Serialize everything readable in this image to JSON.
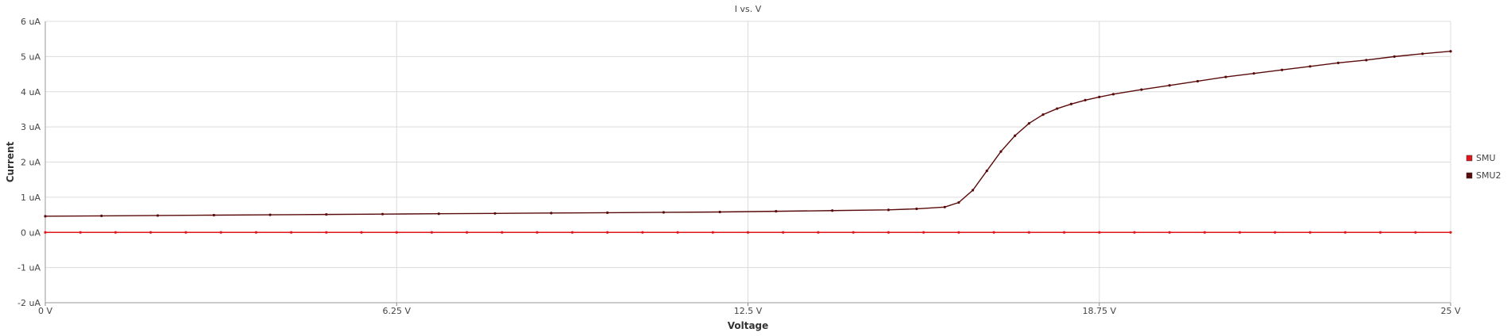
{
  "chart_data": {
    "type": "line",
    "title": "I vs. V",
    "xlabel": "Voltage",
    "ylabel": "Current",
    "xlim": [
      0,
      25
    ],
    "ylim": [
      -2,
      6
    ],
    "x_ticks": [
      0,
      6.25,
      12.5,
      18.75,
      25
    ],
    "x_tick_labels": [
      "0 V",
      "6.25 V",
      "12.5 V",
      "18.75 V",
      "25 V"
    ],
    "y_ticks": [
      -2,
      -1,
      0,
      1,
      2,
      3,
      4,
      5,
      6
    ],
    "y_tick_labels": [
      "-2 uA",
      "-1 uA",
      "0 uA",
      "1 uA",
      "2 uA",
      "3 uA",
      "4 uA",
      "5 uA",
      "6 uA"
    ],
    "grid": true,
    "legend_position": "right",
    "series": [
      {
        "name": "SMU",
        "color": "#e0161c",
        "x": [
          0,
          0.625,
          1.25,
          1.875,
          2.5,
          3.125,
          3.75,
          4.375,
          5,
          5.625,
          6.25,
          6.875,
          7.5,
          8.125,
          8.75,
          9.375,
          10,
          10.625,
          11.25,
          11.875,
          12.5,
          13.125,
          13.75,
          14.375,
          15,
          15.625,
          16.25,
          16.875,
          17.5,
          18.125,
          18.75,
          19.375,
          20,
          20.625,
          21.25,
          21.875,
          22.5,
          23.125,
          23.75,
          24.375,
          25
        ],
        "y": [
          0,
          0,
          0,
          0,
          0,
          0,
          0,
          0,
          0,
          0,
          0,
          0,
          0,
          0,
          0,
          0,
          0,
          0,
          0,
          0,
          0,
          0,
          0,
          0,
          0,
          0,
          0,
          0,
          0,
          0,
          0,
          0,
          0,
          0,
          0,
          0,
          0,
          0,
          0,
          0,
          0
        ]
      },
      {
        "name": "SMU2",
        "color": "#5a0a0a",
        "x": [
          0,
          1,
          2,
          3,
          4,
          5,
          6,
          7,
          8,
          9,
          10,
          11,
          12,
          13,
          14,
          15,
          15.5,
          16,
          16.25,
          16.5,
          16.75,
          17,
          17.25,
          17.5,
          17.75,
          18,
          18.25,
          18.5,
          18.75,
          19,
          19.5,
          20,
          20.5,
          21,
          21.5,
          22,
          22.5,
          23,
          23.5,
          24,
          24.5,
          25
        ],
        "y": [
          0.46,
          0.47,
          0.48,
          0.49,
          0.5,
          0.51,
          0.52,
          0.53,
          0.54,
          0.55,
          0.56,
          0.57,
          0.58,
          0.6,
          0.62,
          0.64,
          0.67,
          0.72,
          0.85,
          1.2,
          1.75,
          2.3,
          2.75,
          3.1,
          3.35,
          3.52,
          3.65,
          3.76,
          3.85,
          3.93,
          4.06,
          4.18,
          4.3,
          4.42,
          4.52,
          4.62,
          4.72,
          4.82,
          4.9,
          5.0,
          5.08,
          5.15
        ]
      }
    ]
  }
}
